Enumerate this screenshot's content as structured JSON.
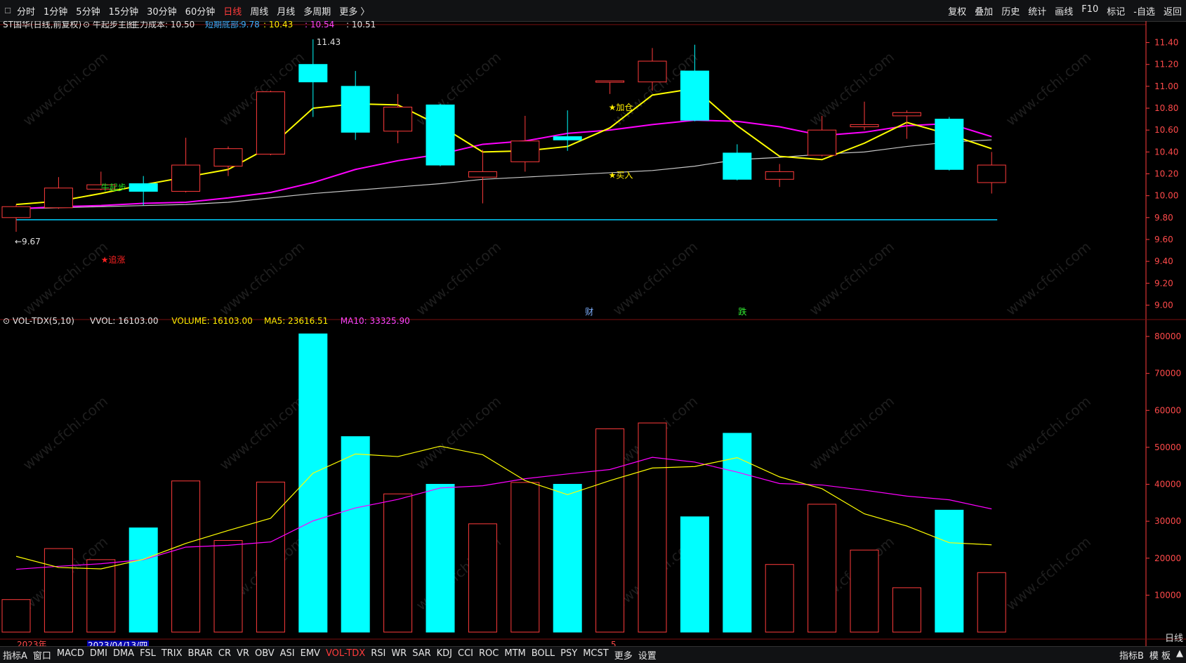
{
  "topbar": {
    "left_tabs": [
      {
        "label": "分时",
        "active": false
      },
      {
        "label": "1分钟",
        "active": false
      },
      {
        "label": "5分钟",
        "active": false
      },
      {
        "label": "15分钟",
        "active": false
      },
      {
        "label": "30分钟",
        "active": false
      },
      {
        "label": "60分钟",
        "active": false
      },
      {
        "label": "日线",
        "active": true
      },
      {
        "label": "周线",
        "active": false
      },
      {
        "label": "月线",
        "active": false
      },
      {
        "label": "多周期",
        "active": false
      },
      {
        "label": "更多 〉",
        "active": false
      }
    ],
    "right_tabs": [
      "复权",
      "叠加",
      "历史",
      "统计",
      "画线",
      "F10",
      "标记",
      "-自选",
      "返回"
    ]
  },
  "price_header": {
    "title": "ST国华(日线,前复权)",
    "indicator": "牛起步主图",
    "cost_label": "主力成本: 10.50",
    "short_label": "短期底部:",
    "short_v1": "9.78",
    "short_v2": ": 10.43",
    "short_v3": ": 10.54",
    "short_v4": ": 10.51"
  },
  "vol_header": {
    "name": "VOL-TDX(5,10)",
    "vvol": "VVOL: 16103.00",
    "volume": "VOLUME: 16103.00",
    "ma5": "MA5: 23616.51",
    "ma10": "MA10: 33325.90"
  },
  "bottombar": {
    "left_label": "指标A",
    "window_label": "窗口",
    "indicators": [
      {
        "label": "MACD",
        "active": false
      },
      {
        "label": "DMI",
        "active": false
      },
      {
        "label": "DMA",
        "active": false
      },
      {
        "label": "FSL",
        "active": false
      },
      {
        "label": "TRIX",
        "active": false
      },
      {
        "label": "BRAR",
        "active": false
      },
      {
        "label": "CR",
        "active": false
      },
      {
        "label": "VR",
        "active": false
      },
      {
        "label": "OBV",
        "active": false
      },
      {
        "label": "ASI",
        "active": false
      },
      {
        "label": "EMV",
        "active": false
      },
      {
        "label": "VOL-TDX",
        "active": true
      },
      {
        "label": "RSI",
        "active": false
      },
      {
        "label": "WR",
        "active": false
      },
      {
        "label": "SAR",
        "active": false
      },
      {
        "label": "KDJ",
        "active": false
      },
      {
        "label": "CCI",
        "active": false
      },
      {
        "label": "ROC",
        "active": false
      },
      {
        "label": "MTM",
        "active": false
      },
      {
        "label": "BOLL",
        "active": false
      },
      {
        "label": "PSY",
        "active": false
      },
      {
        "label": "MCST",
        "active": false
      },
      {
        "label": "更多",
        "active": false
      },
      {
        "label": "设置",
        "active": false
      }
    ],
    "right_items": [
      "指标B",
      "模 板",
      "▲"
    ],
    "period_label": "日线"
  },
  "axis": {
    "year_label": "2023年",
    "date_label": "2023/04/13/四",
    "month_label": "5"
  },
  "annotations": {
    "high": "11.43",
    "low": "←9.67",
    "niuqibu": "牛起步",
    "zhuizhang": "★追涨",
    "jiacang": "★加仓",
    "mairu": "★买入",
    "cai": "财",
    "die": "跌"
  },
  "watermark": "www.cfchi.com",
  "colors": {
    "up": "#ff3b3b",
    "down": "#00ffff",
    "ma_yellow": "#ffff00",
    "ma_magenta": "#ff00ff",
    "ma_white": "#c8c8c8",
    "cyan_line": "#00d0ff",
    "axis": "#ff3b3b",
    "grid": "#5a0000"
  },
  "chart_data": [
    {
      "type": "candlestick",
      "title": "ST国华(日线,前复权)",
      "ylim": [
        8.9,
        11.5
      ],
      "y_ticks": [
        9.0,
        9.2,
        9.4,
        9.6,
        9.8,
        10.0,
        10.2,
        10.4,
        10.6,
        10.8,
        11.0,
        11.2,
        11.4
      ],
      "candles": [
        {
          "o": 9.8,
          "c": 9.9,
          "h": 9.92,
          "l": 9.67
        },
        {
          "o": 9.89,
          "c": 10.07,
          "h": 10.17,
          "l": 9.88
        },
        {
          "o": 10.06,
          "c": 10.1,
          "h": 10.22,
          "l": 10.05
        },
        {
          "o": 10.11,
          "c": 10.04,
          "h": 10.18,
          "l": 9.91
        },
        {
          "o": 10.04,
          "c": 10.28,
          "h": 10.53,
          "l": 10.03
        },
        {
          "o": 10.27,
          "c": 10.43,
          "h": 10.45,
          "l": 10.18
        },
        {
          "o": 10.38,
          "c": 10.95,
          "h": 10.96,
          "l": 10.37
        },
        {
          "o": 11.2,
          "c": 11.04,
          "h": 11.43,
          "l": 10.72
        },
        {
          "o": 11.0,
          "c": 10.58,
          "h": 11.14,
          "l": 10.51
        },
        {
          "o": 10.59,
          "c": 10.81,
          "h": 10.93,
          "l": 10.48
        },
        {
          "o": 10.83,
          "c": 10.28,
          "h": 10.84,
          "l": 10.27
        },
        {
          "o": 10.17,
          "c": 10.22,
          "h": 10.42,
          "l": 9.93
        },
        {
          "o": 10.31,
          "c": 10.5,
          "h": 10.73,
          "l": 10.22
        },
        {
          "o": 10.54,
          "c": 10.51,
          "h": 10.78,
          "l": 10.41
        },
        {
          "o": 11.04,
          "c": 11.05,
          "h": 11.04,
          "l": 10.93
        },
        {
          "o": 11.04,
          "c": 11.23,
          "h": 11.35,
          "l": 10.96
        },
        {
          "o": 11.14,
          "c": 10.69,
          "h": 11.38,
          "l": 10.68
        },
        {
          "o": 10.39,
          "c": 10.15,
          "h": 10.47,
          "l": 10.14
        },
        {
          "o": 10.15,
          "c": 10.22,
          "h": 10.29,
          "l": 10.08
        },
        {
          "o": 10.37,
          "c": 10.6,
          "h": 10.73,
          "l": 10.36
        },
        {
          "o": 10.63,
          "c": 10.65,
          "h": 10.86,
          "l": 10.6
        },
        {
          "o": 10.73,
          "c": 10.76,
          "h": 10.78,
          "l": 10.52
        },
        {
          "o": 10.7,
          "c": 10.24,
          "h": 10.72,
          "l": 10.23
        },
        {
          "o": 10.12,
          "c": 10.28,
          "h": 10.4,
          "l": 10.02
        }
      ],
      "ma_yellow": [
        9.92,
        9.95,
        10.02,
        10.1,
        10.17,
        10.24,
        10.45,
        10.8,
        10.84,
        10.83,
        10.64,
        10.4,
        10.41,
        10.45,
        10.62,
        10.92,
        10.98,
        10.64,
        10.36,
        10.33,
        10.48,
        10.67,
        10.56,
        10.43
      ],
      "ma_magenta": [
        9.88,
        9.9,
        9.91,
        9.93,
        9.94,
        9.98,
        10.03,
        10.12,
        10.24,
        10.32,
        10.38,
        10.47,
        10.5,
        10.57,
        10.6,
        10.65,
        10.69,
        10.68,
        10.63,
        10.55,
        10.58,
        10.64,
        10.66,
        10.54
      ],
      "ma_white": [
        9.88,
        9.89,
        9.9,
        9.91,
        9.92,
        9.94,
        9.98,
        10.02,
        10.05,
        10.08,
        10.11,
        10.15,
        10.17,
        10.19,
        10.21,
        10.23,
        10.27,
        10.33,
        10.35,
        10.38,
        10.4,
        10.45,
        10.49,
        10.51
      ],
      "hline": 9.78
    },
    {
      "type": "bar",
      "title": "VOL-TDX(5,10)",
      "ylim": [
        0,
        84000
      ],
      "y_ticks": [
        10000,
        20000,
        30000,
        40000,
        50000,
        60000,
        70000,
        80000
      ],
      "volumes": [
        8800,
        22600,
        19600,
        28200,
        40900,
        24800,
        40600,
        80700,
        52900,
        37400,
        40000,
        29300,
        40500,
        40000,
        55000,
        56600,
        31200,
        53800,
        18300,
        34600,
        22200,
        12000,
        33000,
        16103
      ],
      "up": [
        true,
        true,
        true,
        false,
        true,
        true,
        true,
        false,
        false,
        true,
        false,
        true,
        true,
        false,
        true,
        true,
        false,
        false,
        true,
        true,
        true,
        true,
        false,
        true
      ],
      "ma5": [
        20500,
        17500,
        17100,
        19700,
        24000,
        27500,
        30800,
        43000,
        48200,
        47500,
        50300,
        48000,
        41000,
        37200,
        41000,
        44400,
        44800,
        47200,
        42000,
        38800,
        32000,
        28700,
        24200,
        23616.51
      ],
      "ma10": [
        17000,
        17800,
        18500,
        19600,
        23000,
        23500,
        24400,
        30100,
        33600,
        35900,
        39000,
        39600,
        41500,
        42800,
        44000,
        47300,
        46000,
        43300,
        40200,
        39800,
        38400,
        36800,
        35800,
        33325.9
      ]
    }
  ]
}
